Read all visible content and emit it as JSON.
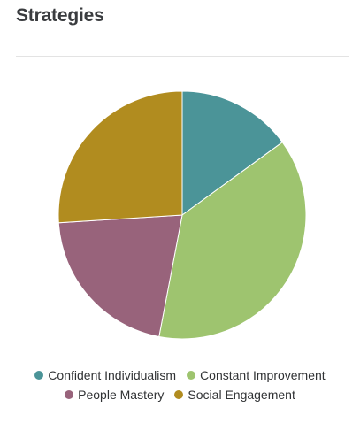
{
  "card": {
    "title": "Strategies"
  },
  "chart_data": {
    "type": "pie",
    "title": "",
    "legend_position": "bottom",
    "categories": [
      "Confident Individualism",
      "Constant Improvement",
      "People Mastery",
      "Social Engagement"
    ],
    "values": [
      15,
      38,
      21,
      26
    ],
    "colors": [
      "#4b9498",
      "#9ec46f",
      "#98637b",
      "#b18c1f"
    ]
  }
}
